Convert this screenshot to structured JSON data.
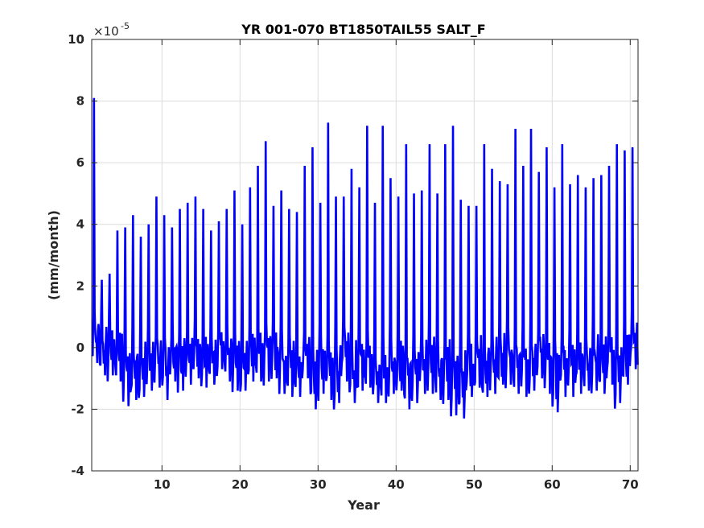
{
  "chart_data": {
    "type": "line",
    "title": "YR 001-070 BT1850TAIL55 SALT_F",
    "xlabel": "Year",
    "ylabel": "(mm/month)",
    "y_multiplier": {
      "base": "×10",
      "exponent": "-5"
    },
    "xlim": [
      1,
      71
    ],
    "ylim": [
      -4,
      10
    ],
    "x_ticks": [
      10,
      20,
      30,
      40,
      50,
      60,
      70
    ],
    "y_ticks": [
      -4,
      -2,
      0,
      2,
      4,
      6,
      8,
      10
    ],
    "x_tick_labels": [
      "10",
      "20",
      "30",
      "40",
      "50",
      "60",
      "70"
    ],
    "y_tick_labels": [
      "-4",
      "-2",
      "0",
      "2",
      "4",
      "6",
      "8",
      "10"
    ],
    "grid": true,
    "line_color": "#0000ff",
    "series": [
      {
        "description": "Monthly values, one seasonal cycle per year",
        "annual_peak": [
          8.1,
          2.2,
          2.4,
          3.8,
          3.9,
          4.3,
          3.6,
          4.0,
          4.9,
          4.3,
          3.9,
          4.5,
          4.7,
          4.9,
          4.5,
          3.8,
          4.1,
          4.5,
          5.1,
          4.0,
          5.2,
          5.9,
          6.7,
          4.6,
          5.1,
          4.5,
          4.4,
          5.9,
          6.5,
          4.7,
          7.3,
          4.9,
          4.9,
          5.8,
          5.2,
          7.2,
          4.7,
          7.2,
          5.5,
          4.9,
          6.6,
          5.0,
          5.1,
          6.6,
          5.0,
          6.6,
          7.2,
          4.8,
          4.6,
          4.6,
          6.6,
          5.8,
          5.4,
          5.3,
          7.1,
          5.9,
          7.1,
          5.7,
          6.5,
          5.2,
          6.6,
          5.3,
          5.6,
          5.2,
          5.5,
          5.6,
          5.9,
          6.6,
          6.4,
          6.5
        ],
        "annual_min": [
          -0.5,
          -0.9,
          -0.9,
          -1.1,
          -1.9,
          -1.7,
          -1.6,
          -1.4,
          -1.3,
          -1.7,
          -1.1,
          -1.4,
          -1.2,
          -1.0,
          -1.3,
          -1.2,
          -0.7,
          -1.1,
          -1.4,
          -1.4,
          -1.1,
          -1.1,
          -1.1,
          -1.0,
          -1.5,
          -1.6,
          -1.6,
          -1.0,
          -2.0,
          -1.5,
          -1.7,
          -1.8,
          -1.1,
          -1.8,
          -1.4,
          -1.3,
          -1.8,
          -1.8,
          -1.5,
          -1.4,
          -2.0,
          -1.8,
          -1.5,
          -1.5,
          -1.7,
          -1.7,
          -2.2,
          -2.3,
          -1.6,
          -1.3,
          -1.6,
          -1.5,
          -1.2,
          -1.2,
          -1.5,
          -1.6,
          -1.4,
          -1.0,
          -1.5,
          -2.1,
          -1.6,
          -1.6,
          -1.5,
          -1.4,
          -1.4,
          -1.5,
          -1.2,
          -1.8,
          -1.2,
          -0.7
        ]
      }
    ]
  }
}
